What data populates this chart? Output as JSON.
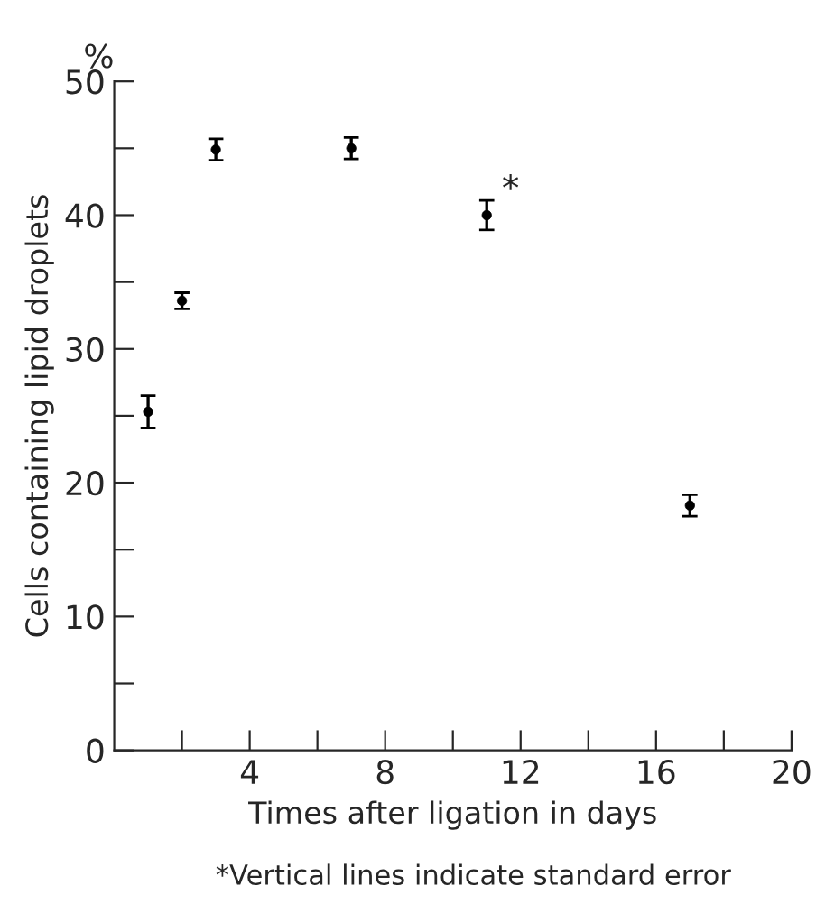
{
  "chart_data": {
    "type": "scatter",
    "xlabel": "Times after ligation in days",
    "ylabel": "Cells containing lipid droplets",
    "x": [
      1,
      2,
      3,
      7,
      11,
      17
    ],
    "values": [
      25.3,
      33.6,
      44.9,
      45.0,
      40.0,
      18.3
    ],
    "errors": [
      1.2,
      0.6,
      0.8,
      0.8,
      1.1,
      0.8
    ],
    "color": "#000000",
    "marker": "circle",
    "xlim": [
      0,
      20
    ],
    "ylim": [
      0,
      50
    ],
    "xticks": [
      {
        "value": 2,
        "label": null
      },
      4,
      {
        "value": 6,
        "label": null
      },
      8,
      {
        "value": 10,
        "label": null
      },
      12,
      {
        "value": 14,
        "label": null
      },
      16,
      {
        "value": 18,
        "label": null
      },
      20
    ],
    "yticks": [
      0,
      {
        "value": 5,
        "label": null
      },
      10,
      {
        "value": 15,
        "label": null
      },
      20,
      {
        "value": 25,
        "label": null
      },
      30,
      {
        "value": 35,
        "label": null
      },
      40,
      {
        "value": 45,
        "label": null
      },
      50
    ],
    "grid": false,
    "annotations": [
      "%",
      {
        "text": "*",
        "x": 11,
        "y": 40
      },
      "*Vertical lines indicate standard error"
    ]
  }
}
